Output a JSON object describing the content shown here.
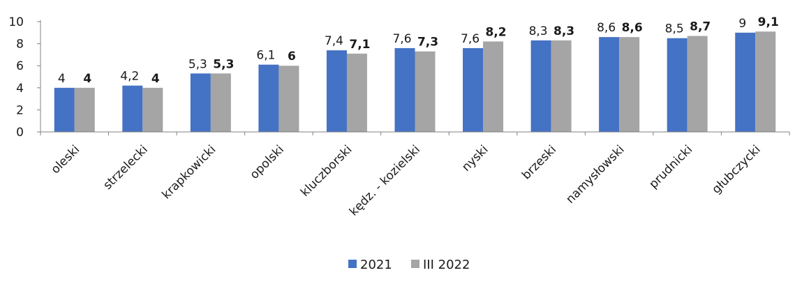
{
  "chart_data": {
    "type": "bar",
    "categories": [
      "oleski",
      "strzelecki",
      "krapkowicki",
      "opolski",
      "kluczborski",
      "kędz. - kozielski",
      "nyski",
      "brzeski",
      "namysłowski",
      "prudnicki",
      "głubczycki"
    ],
    "series": [
      {
        "name": "2021",
        "color": "#4472c4",
        "values": [
          4,
          4.2,
          5.3,
          6.1,
          7.4,
          7.6,
          7.6,
          8.3,
          8.6,
          8.5,
          9
        ],
        "labels": [
          "4",
          "4,2",
          "5,3",
          "6,1",
          "7,4",
          "7,6",
          "7,6",
          "8,3",
          "8,6",
          "8,5",
          "9"
        ]
      },
      {
        "name": "III 2022",
        "color": "#a5a5a5",
        "values": [
          4,
          4,
          5.3,
          6,
          7.1,
          7.3,
          8.2,
          8.3,
          8.6,
          8.7,
          9.1
        ],
        "labels": [
          "4",
          "4",
          "5,3",
          "6",
          "7,1",
          "7,3",
          "8,2",
          "8,3",
          "8,6",
          "8,7",
          "9,1"
        ]
      }
    ],
    "yticks": [
      0,
      2,
      4,
      6,
      8,
      10
    ],
    "ylim": [
      0,
      10
    ],
    "title": "",
    "xlabel": "",
    "ylabel": "",
    "grid": false,
    "legend_position": "bottom-center"
  }
}
